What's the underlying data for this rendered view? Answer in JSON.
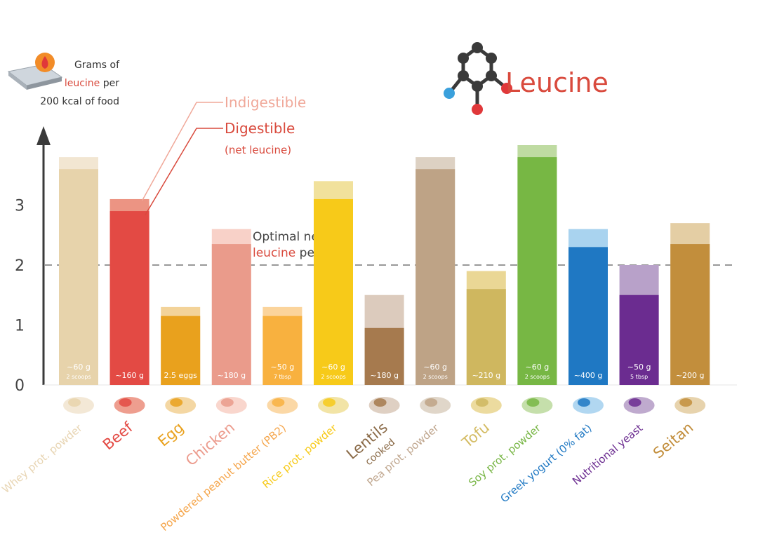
{
  "header": {
    "ylabel": {
      "line1": "Grams of",
      "line2_highlight": "leucine",
      "line2_rest": " per",
      "line3": "200 kcal of food"
    },
    "title": "Leucine"
  },
  "legend": {
    "indigestible": "Indigestible",
    "digestible": "Digestible",
    "digestible_sub": "(net leucine)"
  },
  "reference": {
    "line1": "Optimal net",
    "line2_highlight": "leucine",
    "line2_rest": " per meal",
    "value": 2
  },
  "chart_data": {
    "type": "bar",
    "stacked_overlap": true,
    "ylim": [
      0,
      4.3
    ],
    "yticks": [
      0,
      1,
      2,
      3
    ],
    "categories": [
      "Whey prot. powder",
      "Beef",
      "Egg",
      "Chicken",
      "Powdered peanut butter (PB2)",
      "Rice prot. powder",
      "Lentils",
      "Pea prot. powder",
      "Tofu",
      "Soy prot. powder",
      "Greek yogurt (0% fat)",
      "Nutritional yeast",
      "Seitan"
    ],
    "category_sublabels": [
      "",
      "",
      "",
      "",
      "",
      "",
      "cooked",
      "",
      "",
      "",
      "",
      "",
      ""
    ],
    "series": [
      {
        "name": "Indigestible",
        "values": [
          3.8,
          3.1,
          1.3,
          2.6,
          1.3,
          3.4,
          1.5,
          3.8,
          1.9,
          4.0,
          2.6,
          2.0,
          2.7
        ]
      },
      {
        "name": "Digestible",
        "values": [
          3.6,
          2.9,
          1.15,
          2.35,
          1.15,
          3.1,
          0.95,
          3.6,
          1.6,
          3.8,
          2.3,
          1.5,
          2.35
        ]
      }
    ],
    "amounts": [
      "~60 g",
      "~160 g",
      "2.5 eggs",
      "~180 g",
      "~50 g",
      "~60 g",
      "~180 g",
      "~60 g",
      "~210 g",
      "~60 g",
      "~400 g",
      "~50 g",
      "~200 g"
    ],
    "amount_subs": [
      "2 scoops",
      "",
      "",
      "",
      "7 tbsp",
      "2 scoops",
      "",
      "2 scoops",
      "",
      "2 scoops",
      "",
      "5 tbsp",
      ""
    ],
    "colors_dark": [
      "#e7d3ab",
      "#e34a44",
      "#e9a11d",
      "#ea9b8b",
      "#f8b13f",
      "#f7ca19",
      "#a67a4e",
      "#bea386",
      "#cfb75f",
      "#77b744",
      "#1f78c3",
      "#6b2c90",
      "#c28e3c"
    ],
    "colors_light": [
      "#f2e6d2",
      "#ec9483",
      "#f3d399",
      "#f8d1c8",
      "#fbd49c",
      "#f1e19c",
      "#dccbbd",
      "#ddd1c3",
      "#ead795",
      "#bfdba2",
      "#a9d3ef",
      "#b8a1c9",
      "#e4cea4"
    ],
    "label_colors": [
      "#e8d5b3",
      "#e34a44",
      "#e9a11d",
      "#ec9b8d",
      "#f5a54a",
      "#f7ca19",
      "#8a6a47",
      "#c0a78f",
      "#d4bc64",
      "#78b645",
      "#1f78c3",
      "#6b2c90",
      "#c28e3c"
    ]
  }
}
